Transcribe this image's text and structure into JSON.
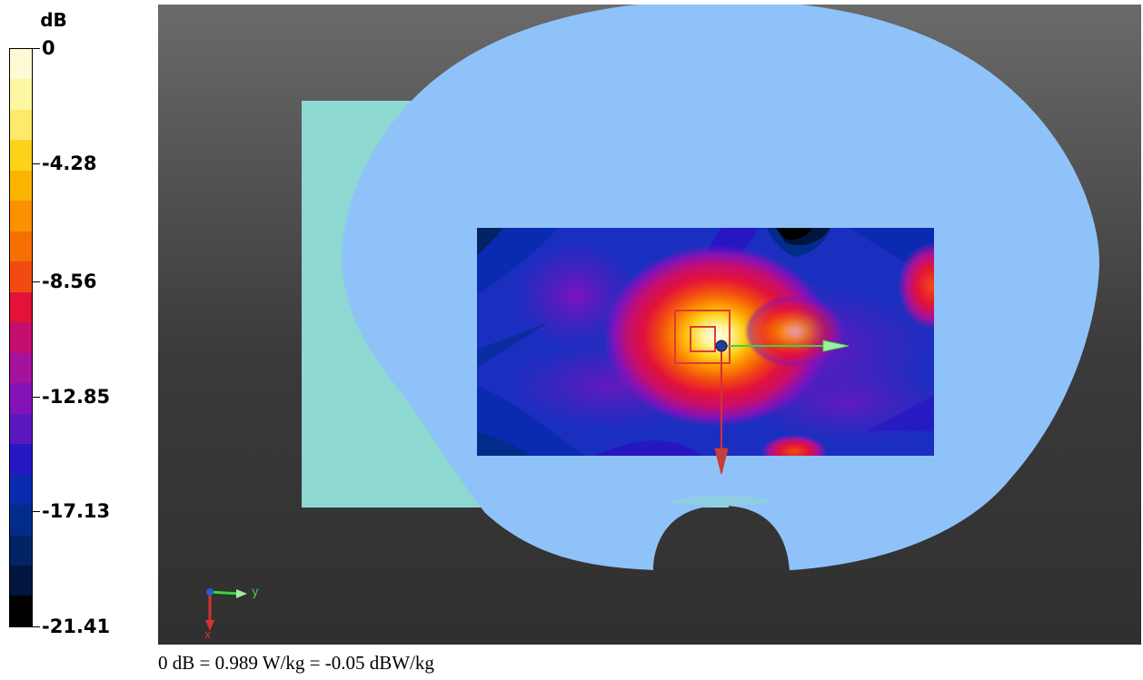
{
  "legend": {
    "unit": "dB",
    "tick_labels": [
      "0",
      "-4.28",
      "-8.56",
      "-12.85",
      "-17.13",
      "-21.41"
    ],
    "color_bands": [
      "#fdfbd4",
      "#fef7a1",
      "#fde96a",
      "#fdd21a",
      "#fcb400",
      "#fc9000",
      "#f57000",
      "#f24a10",
      "#e2123a",
      "#c60e6e",
      "#a5129e",
      "#8412b8",
      "#5c18c0",
      "#2616c4",
      "#0a2ab0",
      "#022c8a",
      "#022466",
      "#01163e",
      "#000000"
    ]
  },
  "viewport": {
    "axis_labels": {
      "y": "y",
      "x": "x"
    },
    "colors": {
      "phantom": "#8fc2f8",
      "plate": "#8ed8d2",
      "axis_y": "#3fd23f",
      "axis_x": "#d83030",
      "max_marker": "#e03838"
    }
  },
  "caption": "0 dB = 0.989 W/kg = -0.05 dBW/kg"
}
